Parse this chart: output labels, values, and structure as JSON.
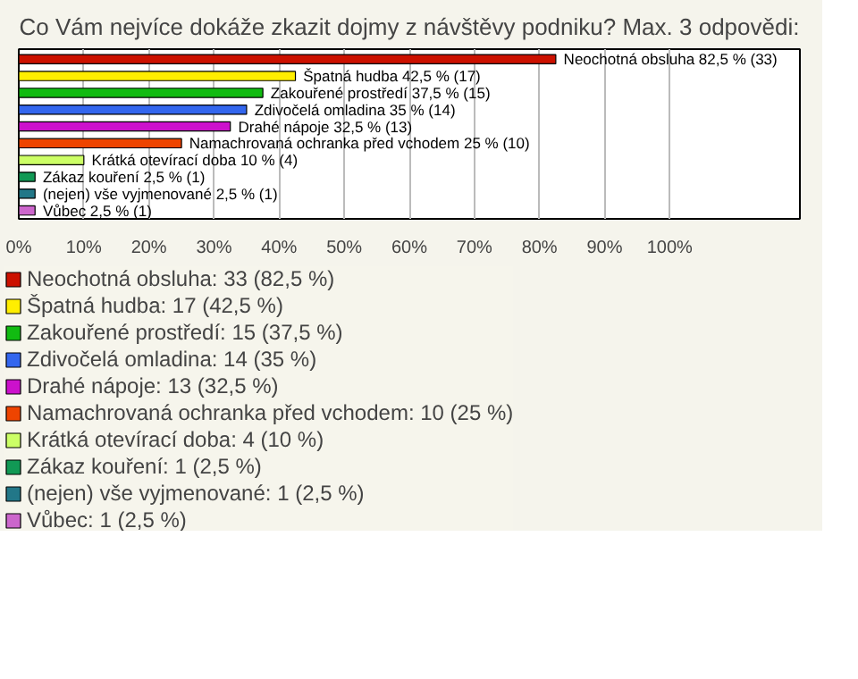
{
  "chart_data": {
    "type": "bar",
    "orientation": "horizontal",
    "stacked": true,
    "title": "Co Vám nejvíce dokáže zkazit dojmy z návštěvy podniku? Max. 3 odpovědi:",
    "categories": [
      null,
      null,
      null,
      null,
      null,
      null,
      null,
      null,
      null,
      null
    ],
    "series": [
      {
        "name": "Neochotná obsluha: 33 (82,5 %)",
        "color": "#cc1100",
        "values": [
          82.5,
          null,
          null,
          null,
          null,
          null,
          null,
          null,
          null,
          null
        ],
        "value_labels": [
          "Neochotná obsluha 82,5 % (33)",
          null,
          null,
          null,
          null,
          null,
          null,
          null,
          null,
          null
        ]
      },
      {
        "name": "Špatná hudba: 17 (42,5 %)",
        "color": "#ffee00",
        "values": [
          null,
          42.5,
          null,
          null,
          null,
          null,
          null,
          null,
          null,
          null
        ],
        "value_labels": [
          null,
          "Špatná hudba 42,5 % (17)",
          null,
          null,
          null,
          null,
          null,
          null,
          null,
          null
        ]
      },
      {
        "name": "Zakouřené prostředí: 15 (37,5 %)",
        "color": "#11bb11",
        "values": [
          null,
          null,
          37.5,
          null,
          null,
          null,
          null,
          null,
          null,
          null
        ],
        "value_labels": [
          null,
          null,
          "Zakouřené prostředí 37,5 % (15)",
          null,
          null,
          null,
          null,
          null,
          null,
          null
        ]
      },
      {
        "name": "Zdivočelá omladina: 14 (35 %)",
        "color": "#3366ee",
        "values": [
          null,
          null,
          null,
          35,
          null,
          null,
          null,
          null,
          null,
          null
        ],
        "value_labels": [
          null,
          null,
          null,
          "Zdivočelá omladina 35 % (14)",
          null,
          null,
          null,
          null,
          null,
          null
        ]
      },
      {
        "name": "Drahé nápoje: 13 (32,5 %)",
        "color": "#cc11cc",
        "values": [
          null,
          null,
          null,
          null,
          32.5,
          null,
          null,
          null,
          null,
          null
        ],
        "value_labels": [
          null,
          null,
          null,
          null,
          "Drahé nápoje 32,5 % (13)",
          null,
          null,
          null,
          null,
          null
        ]
      },
      {
        "name": "Namachrovaná ochranka před vchodem: 10 (25 %)",
        "color": "#ee4400",
        "values": [
          null,
          null,
          null,
          null,
          null,
          25,
          null,
          null,
          null,
          null
        ],
        "value_labels": [
          null,
          null,
          null,
          null,
          null,
          "Namachrovaná ochranka před vchodem 25 % (10)",
          null,
          null,
          null,
          null
        ]
      },
      {
        "name": "Krátká otevírací doba: 4 (10 %)",
        "color": "#ccff66",
        "values": [
          null,
          null,
          null,
          null,
          null,
          null,
          10,
          null,
          null,
          null
        ],
        "value_labels": [
          null,
          null,
          null,
          null,
          null,
          null,
          "Krátká otevírací doba 10 % (4)",
          null,
          null,
          null
        ]
      },
      {
        "name": "Zákaz kouření: 1 (2,5 %)",
        "color": "#119955",
        "values": [
          null,
          null,
          null,
          null,
          null,
          null,
          null,
          2.5,
          null,
          null
        ],
        "value_labels": [
          null,
          null,
          null,
          null,
          null,
          null,
          null,
          "Zákaz kouření 2,5 % (1)",
          null,
          null
        ]
      },
      {
        "name": "(nejen) vše vyjmenované: 1 (2,5 %)",
        "color": "#227788",
        "values": [
          null,
          null,
          null,
          null,
          null,
          null,
          null,
          null,
          2.5,
          null
        ],
        "value_labels": [
          null,
          null,
          null,
          null,
          null,
          null,
          null,
          null,
          "(nejen) vše vyjmenované 2,5 % (1)",
          null
        ]
      },
      {
        "name": "Vůbec: 1 (2,5 %)",
        "color": "#cc66cc",
        "values": [
          null,
          null,
          null,
          null,
          null,
          null,
          null,
          null,
          null,
          2.5
        ],
        "value_labels": [
          null,
          null,
          null,
          null,
          null,
          null,
          null,
          null,
          null,
          "Vůbec 2,5 % (1)"
        ]
      }
    ],
    "xlim": [
      0,
      120
    ],
    "xticks": [
      {
        "value": 0,
        "label": "0%"
      },
      {
        "value": 10,
        "label": "10%"
      },
      {
        "value": 20,
        "label": "20%"
      },
      {
        "value": 30,
        "label": "30%"
      },
      {
        "value": 40,
        "label": "40%"
      },
      {
        "value": 50,
        "label": "50%"
      },
      {
        "value": 60,
        "label": "60%"
      },
      {
        "value": 70,
        "label": "70%"
      },
      {
        "value": 80,
        "label": "80%"
      },
      {
        "value": 90,
        "label": "90%"
      },
      {
        "value": 100,
        "label": "100%"
      }
    ],
    "grid": "x",
    "legend": "bottom",
    "tick_labels": "x"
  }
}
